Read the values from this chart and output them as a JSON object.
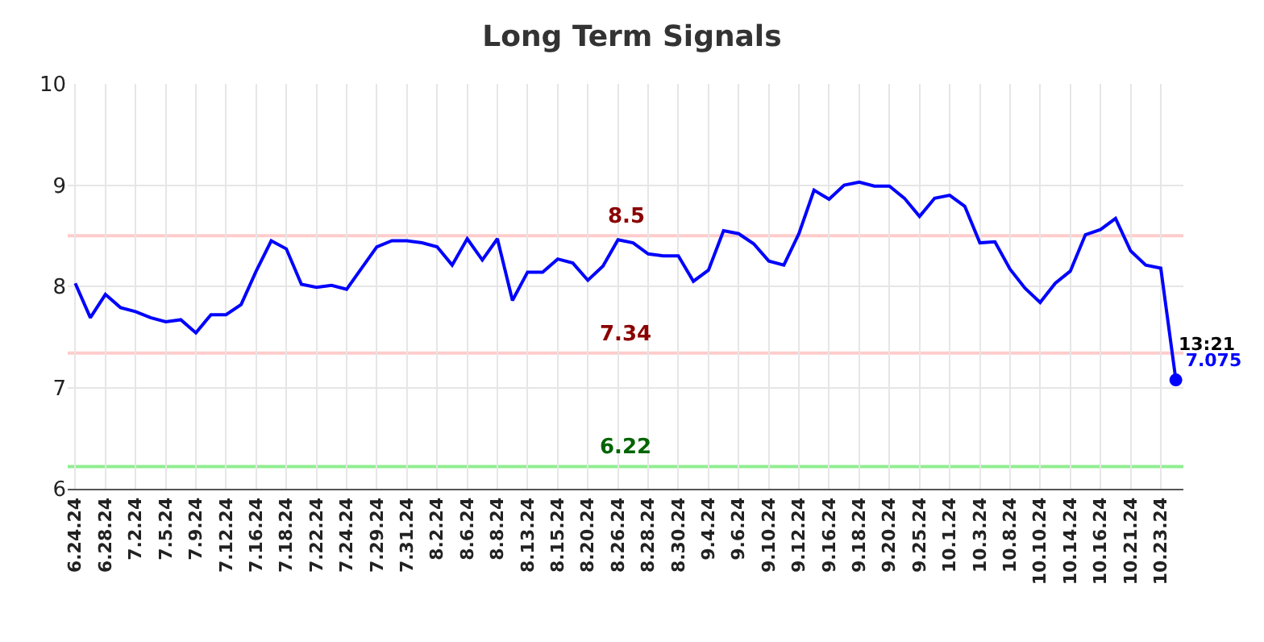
{
  "chart_data": {
    "type": "line",
    "title": "Long Term Signals",
    "categories": [
      "6.24.24",
      null,
      "6.28.24",
      null,
      "7.2.24",
      null,
      "7.5.24",
      null,
      "7.9.24",
      null,
      "7.12.24",
      null,
      "7.16.24",
      null,
      "7.18.24",
      null,
      "7.22.24",
      null,
      "7.24.24",
      null,
      "7.29.24",
      null,
      "7.31.24",
      null,
      "8.2.24",
      null,
      "8.6.24",
      null,
      "8.8.24",
      null,
      "8.13.24",
      null,
      "8.15.24",
      null,
      "8.20.24",
      null,
      "8.26.24",
      null,
      "8.28.24",
      null,
      "8.30.24",
      null,
      "9.4.24",
      null,
      "9.6.24",
      null,
      "9.10.24",
      null,
      "9.12.24",
      null,
      "9.16.24",
      null,
      "9.18.24",
      null,
      "9.20.24",
      null,
      "9.25.24",
      null,
      "10.1.24",
      null,
      "10.3.24",
      null,
      "10.8.24",
      null,
      "10.10.24",
      null,
      "10.14.24",
      null,
      "10.16.24",
      null,
      "10.21.24",
      null,
      "10.23.24",
      null
    ],
    "series": [
      {
        "color": "#0000ff",
        "values": [
          8.03,
          7.69,
          7.92,
          7.79,
          7.75,
          7.69,
          7.65,
          7.67,
          7.54,
          7.72,
          7.72,
          7.82,
          8.15,
          8.45,
          8.37,
          8.02,
          7.99,
          8.01,
          7.97,
          8.18,
          8.39,
          8.45,
          8.45,
          8.43,
          8.39,
          8.21,
          8.47,
          8.26,
          8.47,
          7.86,
          8.14,
          8.14,
          8.27,
          8.23,
          8.06,
          8.2,
          8.46,
          8.43,
          8.32,
          8.3,
          8.3,
          8.05,
          8.16,
          8.55,
          8.52,
          8.42,
          8.25,
          8.21,
          8.52,
          8.95,
          8.86,
          9.0,
          9.03,
          8.99,
          8.99,
          8.87,
          8.69,
          8.87,
          8.9,
          8.79,
          8.43,
          8.44,
          8.17,
          7.98,
          7.84,
          8.03,
          8.15,
          8.51,
          8.56,
          8.67,
          8.35,
          8.21,
          8.18,
          7.075
        ],
        "value_labels": [
          null,
          null,
          null,
          null,
          null,
          null,
          null,
          null,
          null,
          null,
          null,
          null,
          null,
          null,
          null,
          null,
          null,
          null,
          null,
          null,
          null,
          null,
          null,
          null,
          null,
          null,
          null,
          null,
          null,
          null,
          null,
          null,
          null,
          null,
          null,
          null,
          null,
          null,
          null,
          null,
          null,
          null,
          null,
          null,
          null,
          null,
          null,
          null,
          null,
          null,
          null,
          null,
          null,
          null,
          null,
          null,
          null,
          null,
          null,
          null,
          null,
          null,
          null,
          null,
          null,
          null,
          null,
          null,
          null,
          null,
          null,
          null,
          null,
          "7.075"
        ]
      }
    ],
    "annotations": [
      "13:21"
    ],
    "ref_lines": [
      {
        "axis": "y",
        "value": 8.5,
        "label": "8.5",
        "color": "#ffcccc"
      },
      {
        "axis": "y",
        "value": 7.34,
        "label": "7.34",
        "color": "#ffcccc"
      },
      {
        "axis": "y",
        "value": 6.22,
        "label": "6.22",
        "color": "#90ee90"
      }
    ],
    "ylim": [
      6,
      10
    ],
    "yticks": [
      6,
      7,
      8,
      9,
      10
    ],
    "grid": true,
    "marker": "none",
    "line_style": "solid"
  }
}
